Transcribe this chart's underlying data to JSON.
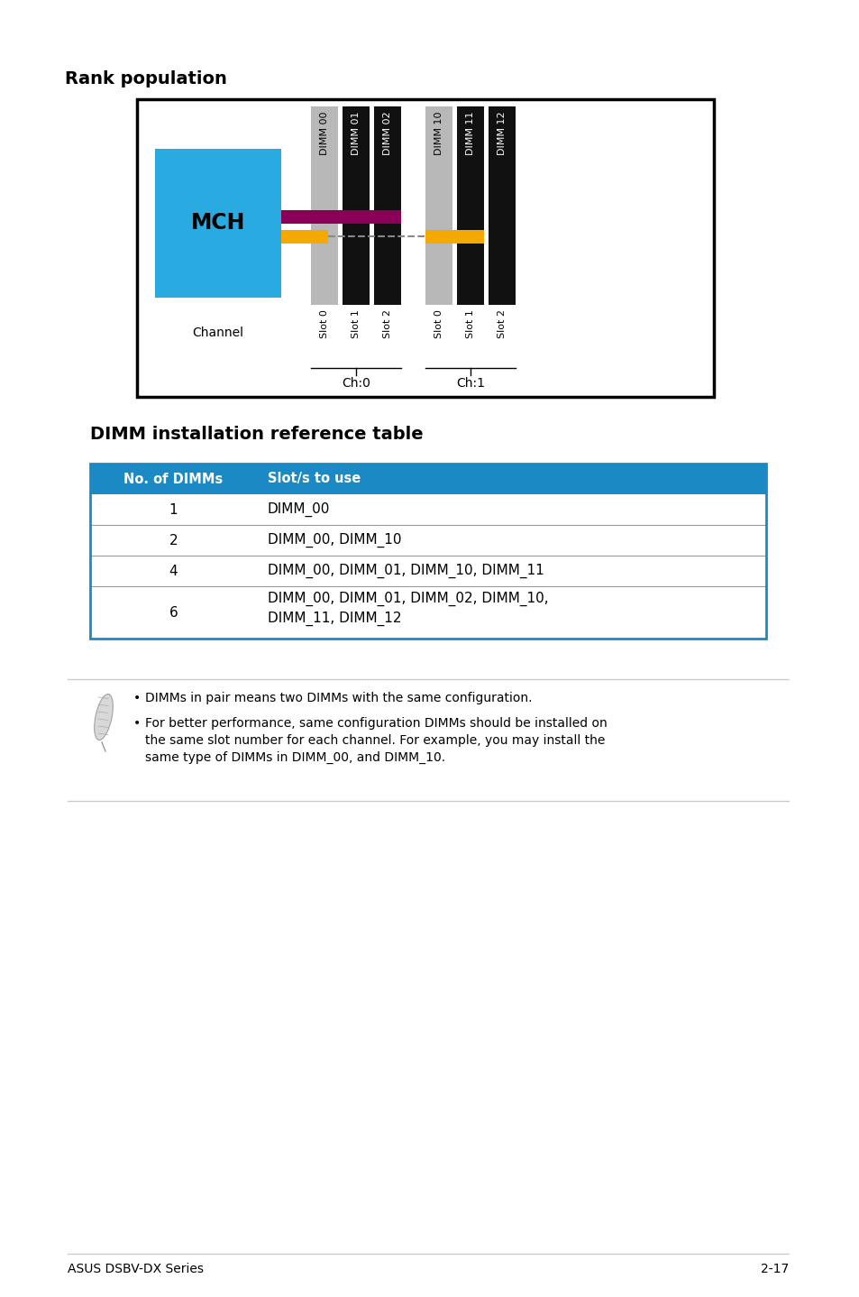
{
  "title_rank": "Rank population",
  "title_dimm": "DIMM installation reference table",
  "bg_color": "#ffffff",
  "box_border_color": "#000000",
  "mch_color": "#29ABE2",
  "mch_text": "MCH",
  "channel_text": "Channel",
  "dimm_labels": [
    "DIMM 00",
    "DIMM 01",
    "DIMM 02",
    "DIMM 10",
    "DIMM 11",
    "DIMM 12"
  ],
  "slot_labels_ch0": [
    "Slot 0",
    "Slot 1",
    "Slot 2"
  ],
  "slot_labels_ch1": [
    "Slot 0",
    "Slot 1",
    "Slot 2"
  ],
  "ch0_text": "Ch:0",
  "ch1_text": "Ch:1",
  "gray_color": "#b8b8b8",
  "black_color": "#111111",
  "magenta_color": "#8B0057",
  "yellow_color": "#F5A800",
  "dashed_color": "#888888",
  "table_header_bg": "#1B8AC4",
  "table_header_text_color": "#ffffff",
  "table_border_color": "#1B8AC4",
  "table_col1_header": "No. of DIMMs",
  "table_col2_header": "Slot/s to use",
  "table_rows": [
    [
      "1",
      "DIMM_00"
    ],
    [
      "2",
      "DIMM_00, DIMM_10"
    ],
    [
      "4",
      "DIMM_00, DIMM_01, DIMM_10, DIMM_11"
    ],
    [
      "6",
      "DIMM_00, DIMM_01, DIMM_02, DIMM_10,\nDIMM_11, DIMM_12"
    ]
  ],
  "note1": "DIMMs in pair means two DIMMs with the same configuration.",
  "note2": "For better performance, same configuration DIMMs should be installed on\nthe same slot number for each channel. For example, you may install the\nsame type of DIMMs in DIMM_00, and DIMM_10.",
  "footer_left": "ASUS DSBV-DX Series",
  "footer_right": "2-17"
}
